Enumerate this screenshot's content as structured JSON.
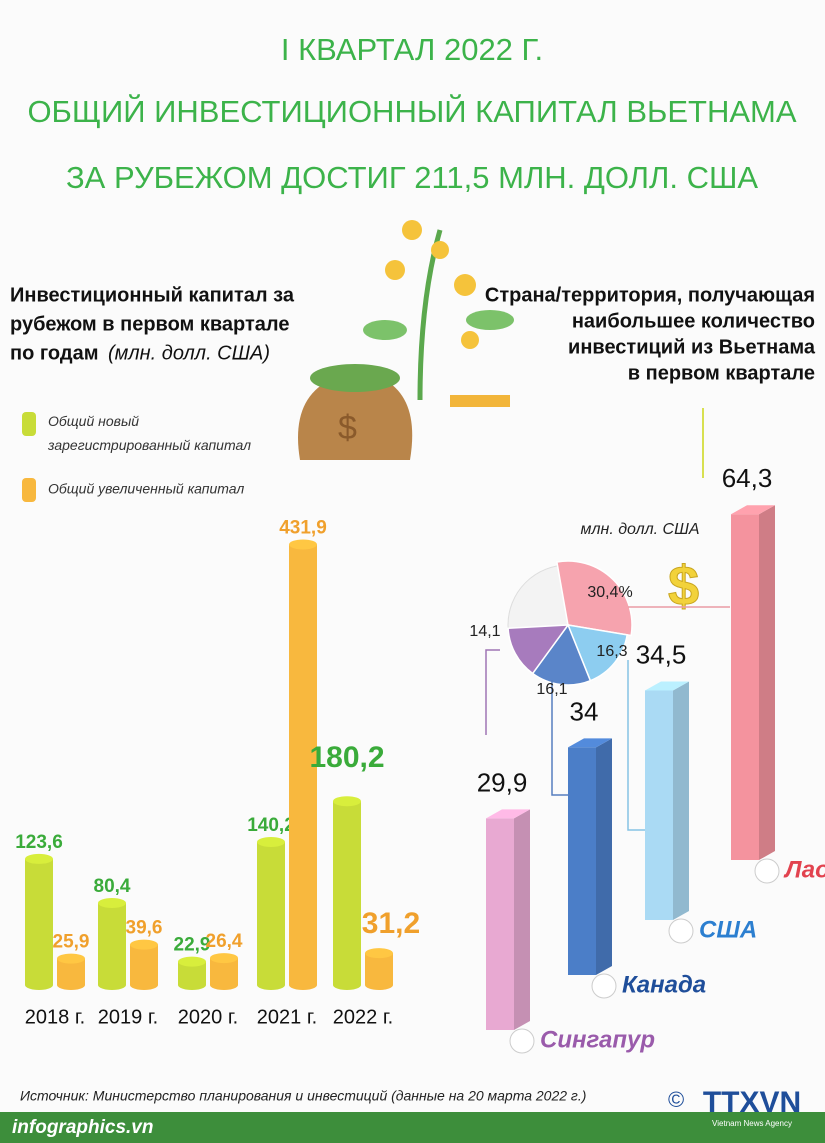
{
  "header": {
    "lines": [
      "I КВАРТАЛ 2022 Г.",
      "ОБЩИЙ ИНВЕСТИЦИОННЫЙ КАПИТАЛ ВЬЕТНАМА",
      "ЗА РУБЕЖОМ ДОСТИГ 211,5 МЛН. ДОЛЛ. США"
    ]
  },
  "chart_data": [
    {
      "type": "bar",
      "title_lines": [
        "Инвестиционный капитал за",
        "рубежом в первом квартале",
        "по годам"
      ],
      "unit": "(млн. долл. США)",
      "categories": [
        "2018 г.",
        "2019 г.",
        "2020 г.",
        "2021 г.",
        "2022 г."
      ],
      "series": [
        {
          "name": "Общий новый зарегистрированный капитал",
          "color": "#c8dc38",
          "values": [
            123.6,
            80.4,
            22.9,
            140.2,
            180.2
          ],
          "value_labels": [
            "123,6",
            "80,4",
            "22,9",
            "140,2",
            "180,2"
          ]
        },
        {
          "name": "Общий увеличенный капитал",
          "color": "#f8b83e",
          "values": [
            25.9,
            39.6,
            26.4,
            431.9,
            31.2
          ],
          "value_labels": [
            "25,9",
            "39,6",
            "26,4",
            "431,9",
            "31,2"
          ]
        }
      ]
    },
    {
      "type": "bar3d",
      "title_lines": [
        "Страна/территория, получающая",
        "наибольшее количество",
        "инвестиций из Вьетнама",
        "в первом квартале"
      ],
      "unit": "млн. долл. США",
      "categories": [
        "Сингапур",
        "Канада",
        "США",
        "Лаос"
      ],
      "values": [
        29.9,
        34,
        34.5,
        64.3
      ],
      "value_labels": [
        "29,9",
        "34",
        "34,5",
        "64,3"
      ],
      "colors": [
        "#e8a9d2",
        "#4b7ec8",
        "#aadaf4",
        "#f4939e"
      ]
    },
    {
      "type": "pie",
      "values": [
        30.4,
        16.3,
        16.1,
        14.1
      ],
      "value_labels": [
        "30,4%",
        "16,3",
        "16,1",
        "14,1"
      ],
      "colors": [
        "#f6a3ae",
        "#8dcdf0",
        "#5a85c9",
        "#a77bbd"
      ]
    }
  ],
  "footer": {
    "source": "Источник: Министерство планирования и инвестиций (данные на 20 марта 2022 г.)",
    "site": "infographics.vn",
    "copyright": "©",
    "brand": "TTXVN",
    "brand_sub": "Vietnam News Agency"
  }
}
